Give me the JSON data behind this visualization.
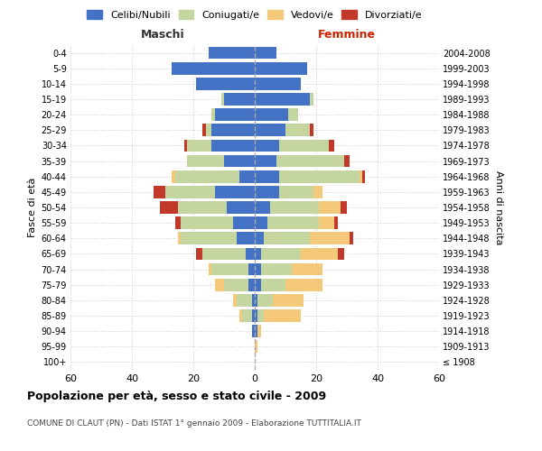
{
  "age_groups": [
    "100+",
    "95-99",
    "90-94",
    "85-89",
    "80-84",
    "75-79",
    "70-74",
    "65-69",
    "60-64",
    "55-59",
    "50-54",
    "45-49",
    "40-44",
    "35-39",
    "30-34",
    "25-29",
    "20-24",
    "15-19",
    "10-14",
    "5-9",
    "0-4"
  ],
  "birth_years": [
    "≤ 1908",
    "1909-1913",
    "1914-1918",
    "1919-1923",
    "1924-1928",
    "1929-1933",
    "1934-1938",
    "1939-1943",
    "1944-1948",
    "1949-1953",
    "1954-1958",
    "1959-1963",
    "1964-1968",
    "1969-1973",
    "1974-1978",
    "1979-1983",
    "1984-1988",
    "1989-1993",
    "1994-1998",
    "1999-2003",
    "2004-2008"
  ],
  "male": {
    "celibi": [
      0,
      0,
      1,
      1,
      1,
      2,
      2,
      3,
      6,
      7,
      9,
      13,
      5,
      10,
      14,
      14,
      13,
      10,
      19,
      27,
      15
    ],
    "coniugati": [
      0,
      0,
      0,
      3,
      5,
      8,
      12,
      14,
      18,
      17,
      16,
      16,
      21,
      12,
      8,
      2,
      1,
      1,
      0,
      0,
      0
    ],
    "vedovi": [
      0,
      0,
      0,
      1,
      1,
      3,
      1,
      0,
      1,
      0,
      0,
      0,
      1,
      0,
      0,
      0,
      0,
      0,
      0,
      0,
      0
    ],
    "divorziati": [
      0,
      0,
      0,
      0,
      0,
      0,
      0,
      2,
      0,
      2,
      6,
      4,
      0,
      0,
      1,
      1,
      0,
      0,
      0,
      0,
      0
    ]
  },
  "female": {
    "nubili": [
      0,
      0,
      1,
      1,
      1,
      2,
      2,
      2,
      3,
      4,
      5,
      8,
      8,
      7,
      8,
      10,
      11,
      18,
      15,
      17,
      7
    ],
    "coniugate": [
      0,
      0,
      0,
      2,
      5,
      8,
      10,
      13,
      15,
      17,
      16,
      11,
      26,
      22,
      16,
      8,
      3,
      1,
      0,
      0,
      0
    ],
    "vedove": [
      0,
      1,
      1,
      12,
      10,
      12,
      10,
      12,
      13,
      5,
      7,
      3,
      1,
      0,
      0,
      0,
      0,
      0,
      0,
      0,
      0
    ],
    "divorziate": [
      0,
      0,
      0,
      0,
      0,
      0,
      0,
      2,
      1,
      1,
      2,
      0,
      1,
      2,
      2,
      1,
      0,
      0,
      0,
      0,
      0
    ]
  },
  "colors": {
    "celibi_nubili": "#4472c4",
    "coniugati": "#c5d5a0",
    "vedovi": "#f5c97a",
    "divorziati": "#c0392b"
  },
  "xlim": 60,
  "title": "Popolazione per età, sesso e stato civile - 2009",
  "subtitle": "COMUNE DI CLAUT (PN) - Dati ISTAT 1° gennaio 2009 - Elaborazione TUTTITALIA.IT",
  "xlabel_left": "Maschi",
  "xlabel_right": "Femmine",
  "ylabel_left": "Fasce di età",
  "ylabel_right": "Anni di nascita",
  "legend_labels": [
    "Celibi/Nubili",
    "Coniugati/e",
    "Vedovi/e",
    "Divorziati/e"
  ],
  "background_color": "#ffffff",
  "grid_color": "#cccccc"
}
